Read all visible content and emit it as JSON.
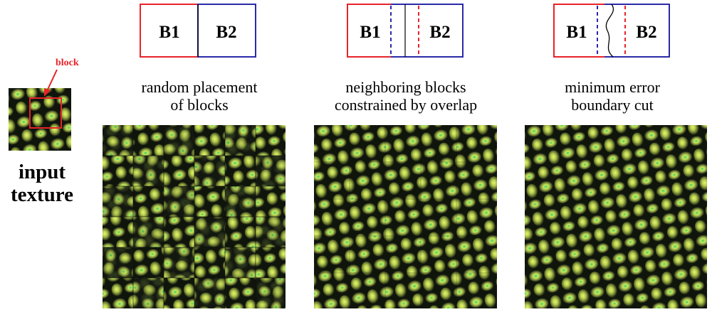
{
  "input": {
    "callout": "block",
    "label_line1": "input",
    "label_line2": "texture"
  },
  "block_left": "B1",
  "block_right": "B2",
  "colors": {
    "b1": "#e8232a",
    "b2": "#2a2aa8",
    "texture_dark": "#0f140d",
    "texture_bright": "#dff06a",
    "texture_green": "#44c85a",
    "texture_olive": "#8c9a40"
  },
  "panels": [
    {
      "method": "random",
      "caption_line1": "random placement",
      "caption_line2": "of blocks"
    },
    {
      "method": "overlap",
      "caption_line1": "neighboring blocks",
      "caption_line2": "constrained by overlap"
    },
    {
      "method": "cut",
      "caption_line1": "minimum error",
      "caption_line2": "boundary cut"
    }
  ]
}
